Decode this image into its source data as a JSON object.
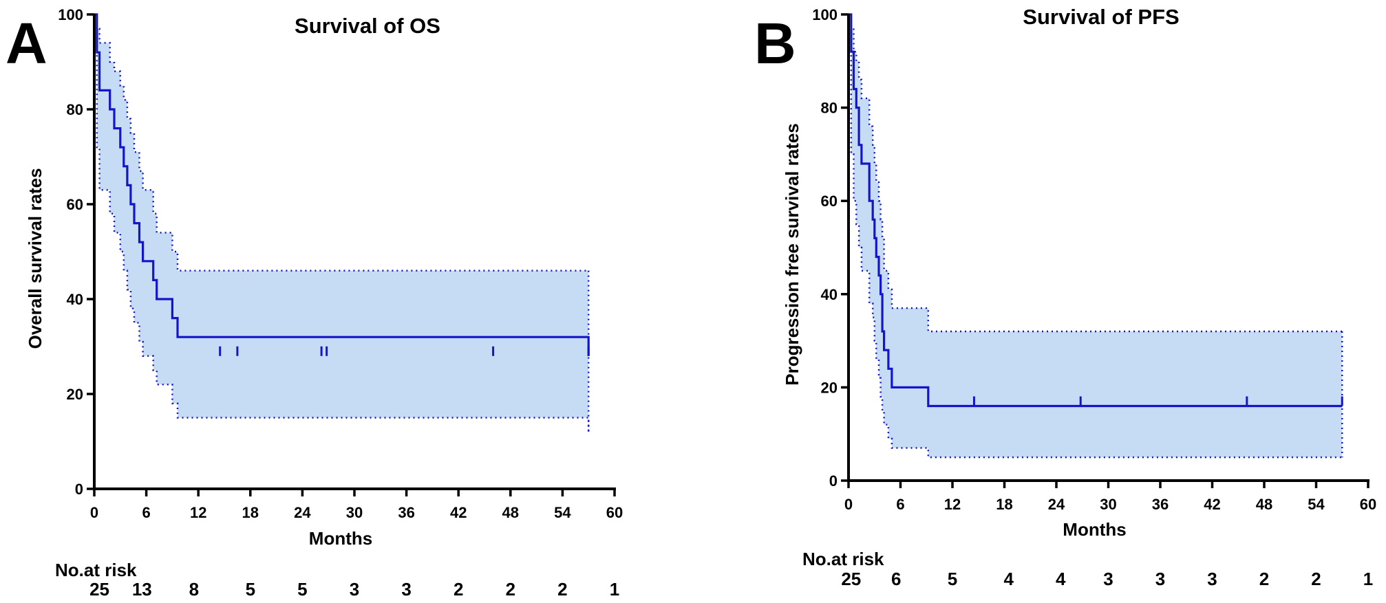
{
  "chart_data": [
    {
      "type": "line",
      "subtype": "kaplan-meier",
      "panel": "A",
      "title": "Survival of OS",
      "xlabel": "Months",
      "ylabel": "Overall survival rates",
      "xlim": [
        0,
        60
      ],
      "ylim": [
        0,
        100
      ],
      "xticks": [
        0,
        6,
        12,
        18,
        24,
        30,
        36,
        42,
        48,
        54,
        60
      ],
      "yticks": [
        0,
        20,
        40,
        60,
        80,
        100
      ],
      "colors": {
        "line": "#1515c8",
        "band": "#c6dcf5",
        "axis": "#000000"
      },
      "series": [
        {
          "name": "survival",
          "style": "solid",
          "x": [
            0,
            0.3,
            0.6,
            1.8,
            2.3,
            3.0,
            3.4,
            3.8,
            4.2,
            4.6,
            5.2,
            5.6,
            6.8,
            7.2,
            9.0,
            9.6,
            57.0
          ],
          "values": [
            100,
            92,
            84,
            80,
            76,
            72,
            68,
            64,
            60,
            56,
            52,
            48,
            44,
            40,
            36,
            32,
            28
          ]
        },
        {
          "name": "upper 95% CI",
          "style": "dotted",
          "x": [
            0,
            0.3,
            0.6,
            1.8,
            2.3,
            3.0,
            3.4,
            3.8,
            4.2,
            4.6,
            5.2,
            5.6,
            6.8,
            7.2,
            9.0,
            9.6,
            57.0
          ],
          "values": [
            100,
            97,
            94,
            90,
            88,
            85,
            82,
            78,
            75,
            71,
            67,
            63,
            58,
            54,
            50,
            46,
            46
          ]
        },
        {
          "name": "lower 95% CI",
          "style": "dotted",
          "x": [
            0,
            0.3,
            0.6,
            1.8,
            2.3,
            3.0,
            3.4,
            3.8,
            4.2,
            4.6,
            5.2,
            5.6,
            6.8,
            7.2,
            9.0,
            9.6,
            57.0
          ],
          "values": [
            100,
            72,
            63,
            58,
            54,
            50,
            46,
            42,
            38,
            35,
            31,
            28,
            25,
            22,
            18,
            15,
            12
          ]
        }
      ],
      "censored_x": [
        14.5,
        16.5,
        26.2,
        26.8,
        46.0,
        57.0
      ],
      "risk_table": {
        "title": "No.at risk",
        "x": [
          0.6,
          5.5,
          11.5,
          18.0,
          24.0,
          30.0,
          36.0,
          42.0,
          48.0,
          54.0,
          60.0
        ],
        "values": [
          "25",
          "13",
          "8",
          "5",
          "5",
          "3",
          "3",
          "2",
          "2",
          "2",
          "1"
        ]
      }
    },
    {
      "type": "line",
      "subtype": "kaplan-meier",
      "panel": "B",
      "title": "Survival of PFS",
      "xlabel": "Months",
      "ylabel": "Progression free survival rates",
      "xlim": [
        0,
        60
      ],
      "ylim": [
        0,
        100
      ],
      "xticks": [
        0,
        6,
        12,
        18,
        24,
        30,
        36,
        42,
        48,
        54,
        60
      ],
      "yticks": [
        0,
        20,
        40,
        60,
        80,
        100
      ],
      "colors": {
        "line": "#1515c8",
        "band": "#c6dcf5",
        "axis": "#000000"
      },
      "series": [
        {
          "name": "survival",
          "style": "solid",
          "x": [
            0,
            0.3,
            0.6,
            0.9,
            1.2,
            1.5,
            2.4,
            2.8,
            3.0,
            3.2,
            3.5,
            3.7,
            3.9,
            4.1,
            4.6,
            5.0,
            9.2,
            57.0
          ],
          "values": [
            100,
            92,
            84,
            80,
            72,
            68,
            60,
            56,
            52,
            48,
            44,
            40,
            32,
            28,
            24,
            20,
            16,
            16
          ]
        },
        {
          "name": "upper 95% CI",
          "style": "dotted",
          "x": [
            0,
            0.3,
            0.6,
            0.9,
            1.2,
            1.5,
            2.4,
            2.8,
            3.0,
            3.2,
            3.5,
            3.7,
            3.9,
            4.1,
            4.6,
            5.0,
            9.2,
            57.0
          ],
          "values": [
            100,
            97,
            92,
            90,
            86,
            82,
            76,
            72,
            68,
            64,
            60,
            56,
            52,
            45,
            41,
            37,
            32,
            32
          ]
        },
        {
          "name": "lower 95% CI",
          "style": "dotted",
          "x": [
            0,
            0.3,
            0.6,
            0.9,
            1.2,
            1.5,
            2.4,
            2.8,
            3.0,
            3.2,
            3.5,
            3.7,
            3.9,
            4.1,
            4.6,
            5.0,
            9.2,
            57.0
          ],
          "values": [
            100,
            70,
            60,
            55,
            50,
            45,
            38,
            35,
            30,
            26,
            22,
            18,
            15,
            12,
            9,
            7,
            5,
            5
          ]
        }
      ],
      "censored_x": [
        14.5,
        26.8,
        46.0,
        57.0
      ],
      "risk_table": {
        "title": "No.at risk",
        "x": [
          0.3,
          5.5,
          12.0,
          18.5,
          24.5,
          30.0,
          36.0,
          42.0,
          48.0,
          54.0,
          60.0
        ],
        "values": [
          "25",
          "6",
          "5",
          "4",
          "4",
          "3",
          "3",
          "3",
          "2",
          "2",
          "1"
        ]
      }
    }
  ]
}
